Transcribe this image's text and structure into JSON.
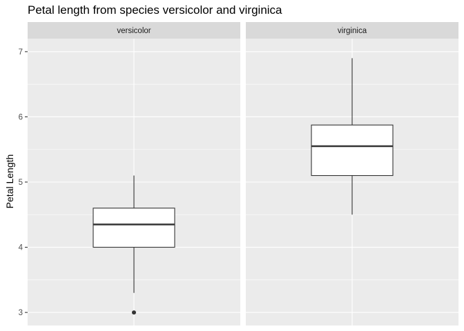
{
  "chart_data": {
    "type": "boxplot",
    "title": "Petal length from species versicolor and virginica",
    "xlabel": "",
    "ylabel": "Petal Length",
    "ylim": [
      2.8,
      7.2
    ],
    "yticks": [
      3,
      4,
      5,
      6,
      7
    ],
    "ytick_labels": [
      "3",
      "4",
      "5",
      "6",
      "7"
    ],
    "grid": true,
    "facets": [
      {
        "label": "versicolor",
        "whisker_low": 3.3,
        "q1": 4.0,
        "median": 4.35,
        "q3": 4.6,
        "whisker_high": 5.1,
        "outliers": [
          3.0
        ]
      },
      {
        "label": "virginica",
        "whisker_low": 4.5,
        "q1": 5.1,
        "median": 5.55,
        "q3": 5.875,
        "whisker_high": 6.9,
        "outliers": []
      }
    ],
    "colors": {
      "panel_bg": "#ebebeb",
      "strip_bg": "#d9d9d9",
      "grid_major": "#ffffff",
      "box_fill": "#ffffff",
      "box_line": "#333333"
    }
  }
}
